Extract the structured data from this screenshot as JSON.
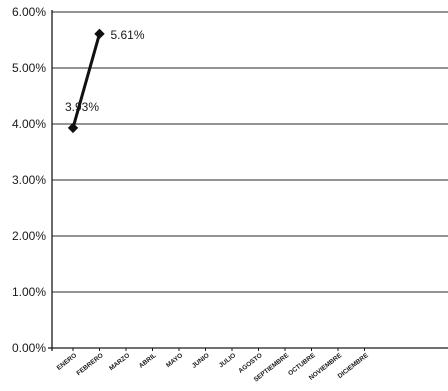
{
  "chart_data": {
    "type": "line",
    "title": "",
    "xlabel": "",
    "ylabel": "",
    "categories": [
      "ENERO",
      "FEBRERO",
      "MARZO",
      "ABRIL",
      "MAYO",
      "JUNIO",
      "JULIO",
      "AGOSTO",
      "SEPTIEMBRE",
      "OCTUBRE",
      "NOVIEMBRE",
      "DICIEMBRE"
    ],
    "y_tick_labels": [
      "0.00%",
      "1.00%",
      "2.00%",
      "3.00%",
      "4.00%",
      "5.00%",
      "6.00%"
    ],
    "ylim": [
      0,
      6
    ],
    "y_unit": "%",
    "grid": "horizontal",
    "legend": "none",
    "series": [
      {
        "values": [
          3.93,
          5.61,
          null,
          null,
          null,
          null,
          null,
          null,
          null,
          null,
          null,
          null
        ],
        "data_labels": [
          "3.93%",
          "5.61%"
        ],
        "color": "#111111",
        "marker": "diamond"
      }
    ]
  }
}
